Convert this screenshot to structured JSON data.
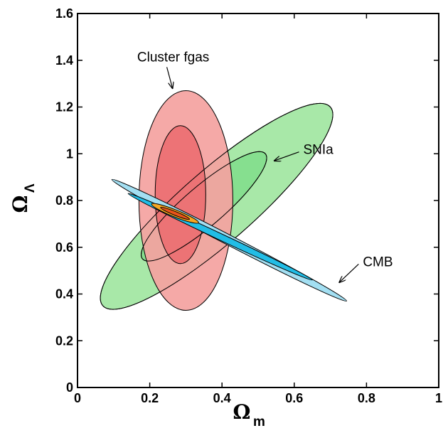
{
  "chart_data": {
    "type": "contour",
    "title": "",
    "xlabel": "Ω",
    "xlabel_subscript": "m",
    "ylabel": "Ω",
    "ylabel_subscript": "Λ",
    "xlim": [
      0,
      1
    ],
    "ylim": [
      0,
      1.6
    ],
    "x_ticks": [
      0,
      0.2,
      0.4,
      0.6,
      0.8,
      1
    ],
    "x_tick_labels": [
      "0",
      "0.2",
      "0.4",
      "0.6",
      "0.8",
      "1"
    ],
    "y_ticks": [
      0,
      0.2,
      0.4,
      0.6,
      0.8,
      1,
      1.2,
      1.4,
      1.6
    ],
    "y_tick_labels": [
      "0",
      "0.2",
      "0.4",
      "0.6",
      "0.8",
      "1",
      "1.2",
      "1.4",
      "1.6"
    ],
    "grid": false,
    "series": [
      {
        "name": "SNIa",
        "colors": [
          "#a8e8a8",
          "#86df8f"
        ],
        "contours": [
          {
            "level": "outer",
            "center": [
              0.37,
              0.78
            ],
            "ends": [
              [
                0.07,
                0.35
              ],
              [
                0.7,
                1.2
              ]
            ],
            "half_width": 0.1
          },
          {
            "level": "inner",
            "center": [
              0.35,
              0.78
            ],
            "ends": [
              [
                0.18,
                0.55
              ],
              [
                0.52,
                1.0
              ]
            ],
            "half_width": 0.055
          }
        ]
      },
      {
        "name": "Cluster fgas",
        "colors": [
          "#f4a3a0",
          "#ec6f72"
        ],
        "contours": [
          {
            "level": "outer",
            "center": [
              0.3,
              0.8
            ],
            "x_halfwidth": 0.13,
            "y_range": [
              0.33,
              1.27
            ]
          },
          {
            "level": "inner",
            "center": [
              0.285,
              0.82
            ],
            "x_halfwidth": 0.07,
            "y_range": [
              0.53,
              1.12
            ]
          }
        ]
      },
      {
        "name": "CMB",
        "colors": [
          "#a3dff2",
          "#22bde6",
          "#f5a623",
          "#e8541a"
        ],
        "contours": [
          {
            "level": "outer",
            "ends": [
              [
                0.095,
                0.89
              ],
              [
                0.745,
                0.37
              ]
            ]
          },
          {
            "level": "inner",
            "ends": [
              [
                0.14,
                0.83
              ],
              [
                0.65,
                0.46
              ]
            ]
          },
          {
            "level": "core-outer",
            "ends": [
              [
                0.205,
                0.785
              ],
              [
                0.335,
                0.705
              ]
            ]
          },
          {
            "level": "core-inner",
            "ends": [
              [
                0.23,
                0.77
              ],
              [
                0.31,
                0.72
              ]
            ]
          }
        ]
      }
    ],
    "annotations": [
      {
        "text": "Cluster fgas",
        "text_at": [
          0.265,
          1.395
        ],
        "arrow_to": [
          0.263,
          1.28
        ]
      },
      {
        "text": "SNIa",
        "text_at": [
          0.625,
          1.02
        ],
        "arrow_to": [
          0.545,
          0.97
        ]
      },
      {
        "text": "CMB",
        "text_at": [
          0.79,
          0.54
        ],
        "arrow_to": [
          0.725,
          0.45
        ]
      }
    ]
  }
}
